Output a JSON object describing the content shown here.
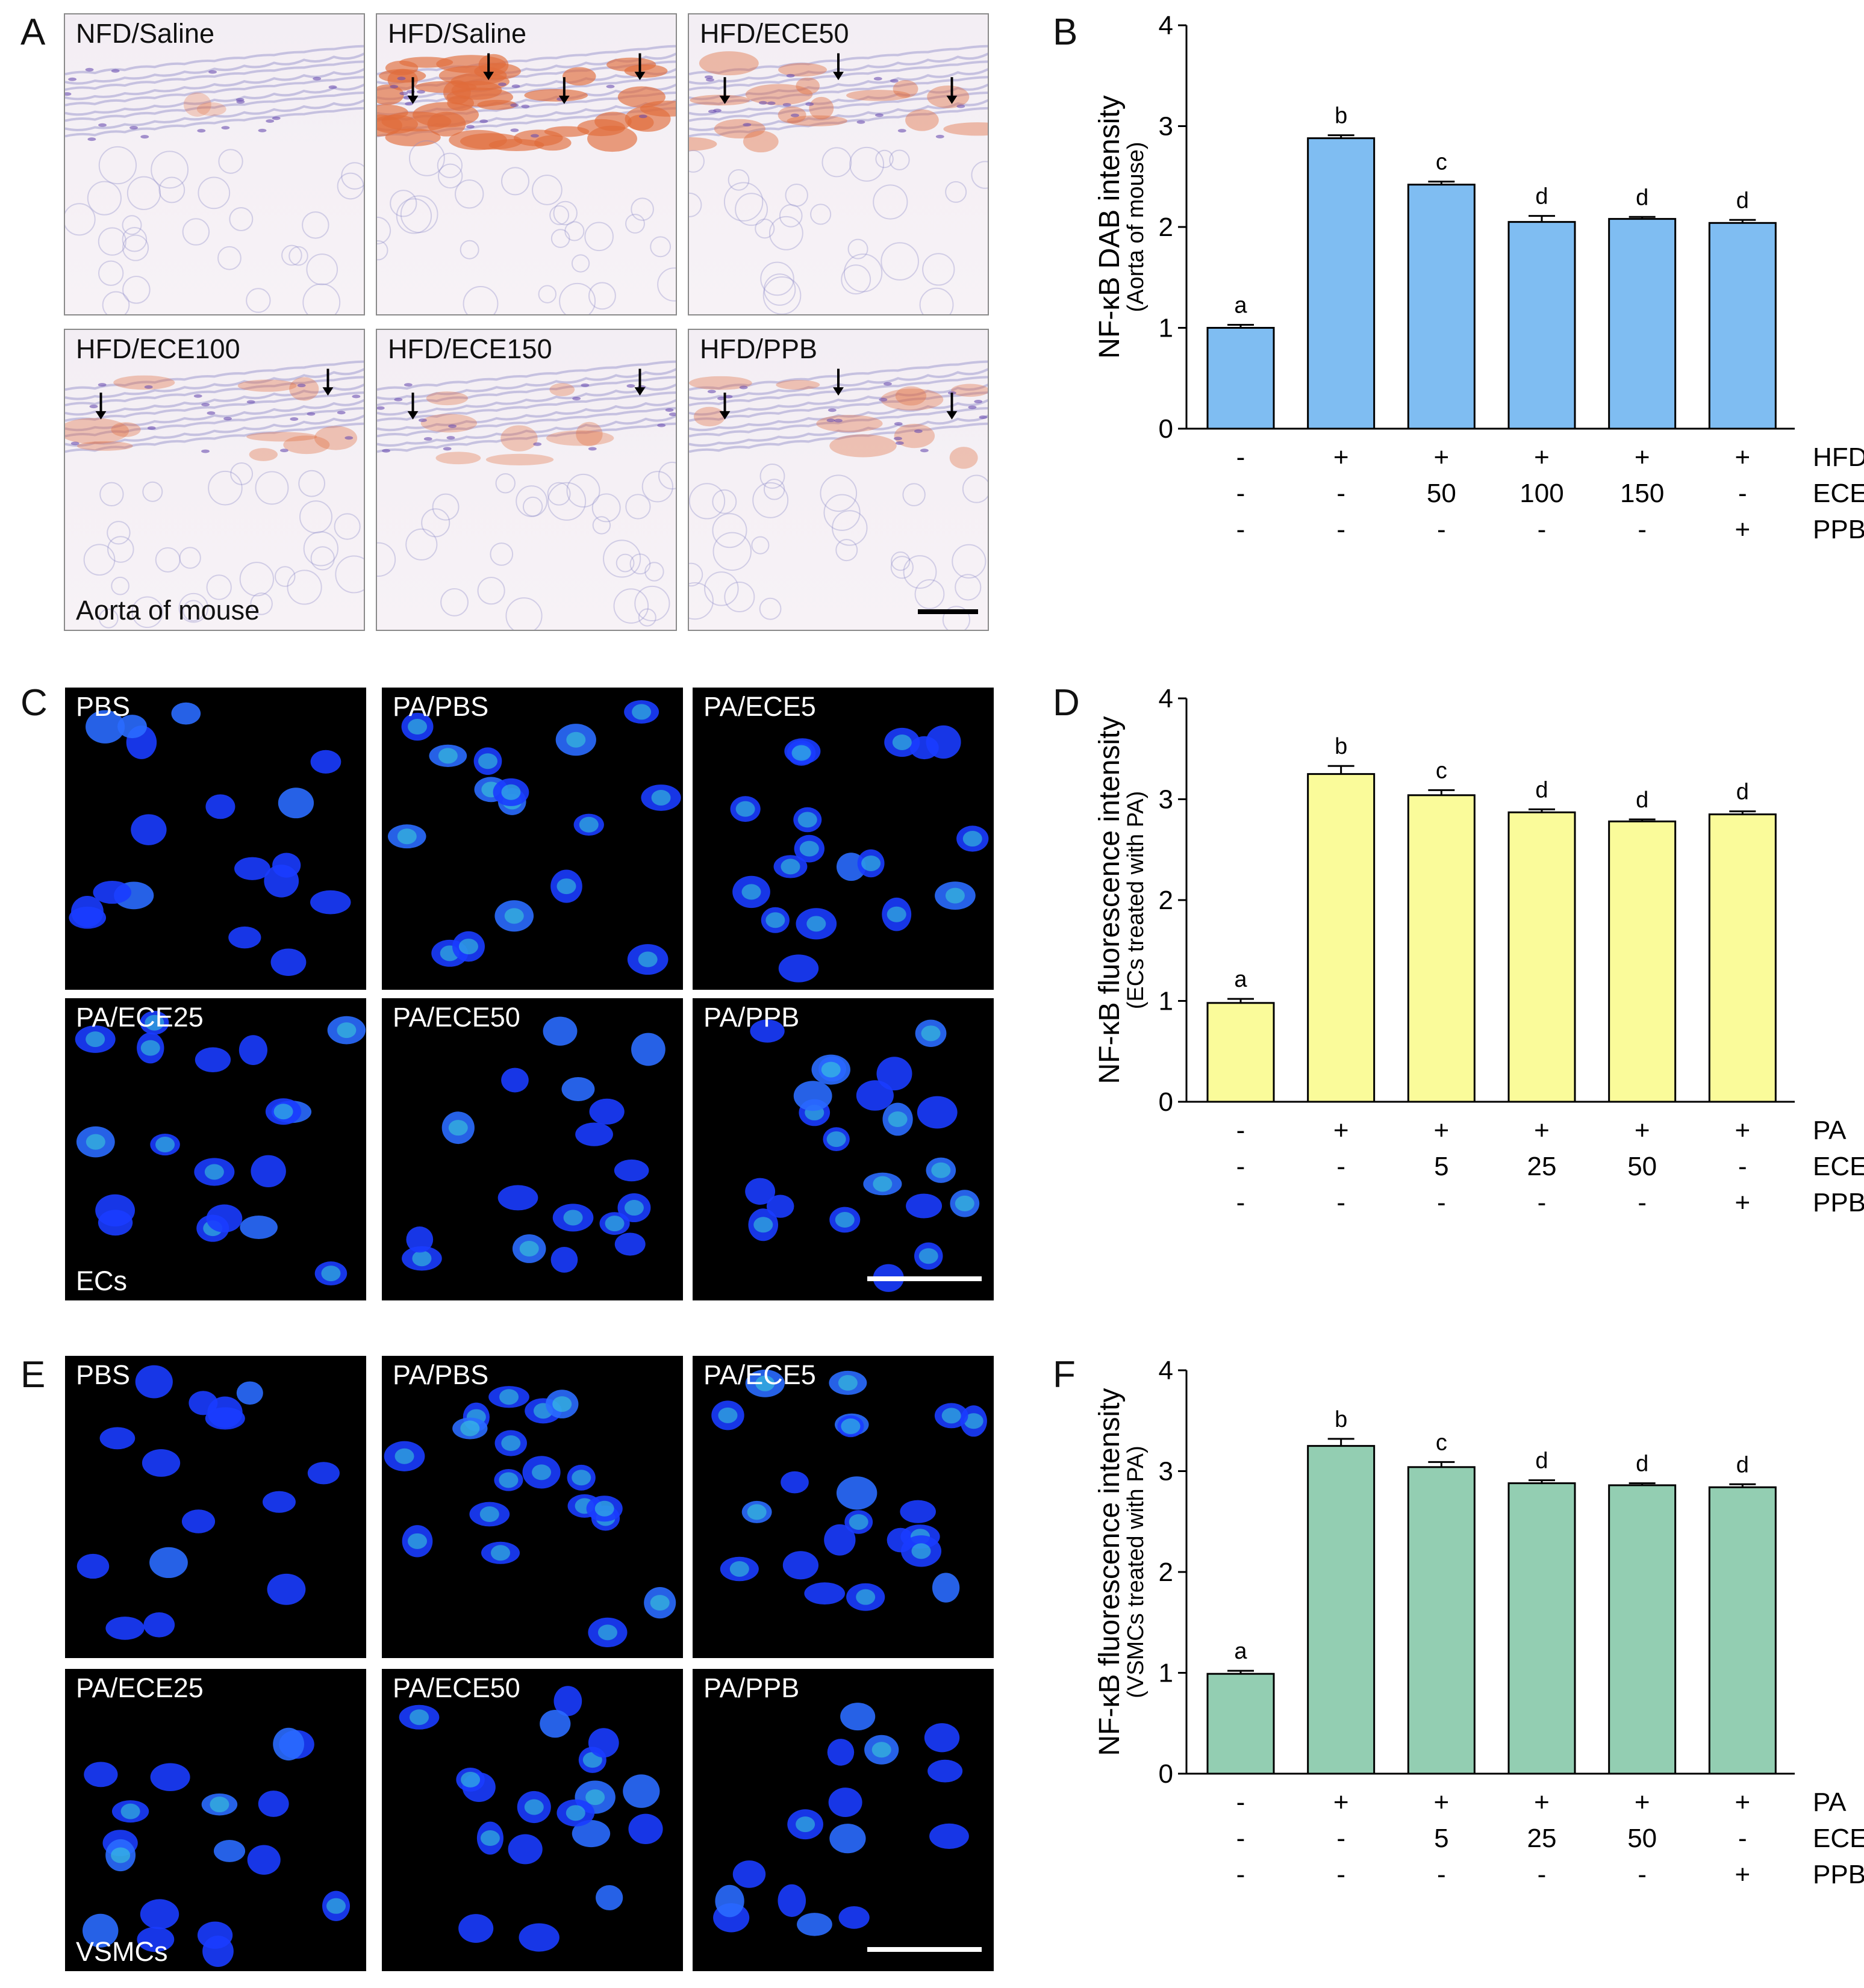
{
  "colors": {
    "blue": "#7fbdf2",
    "yellow": "#fafb9a",
    "green": "#93ceb2",
    "nucleus": "#1a3cff",
    "green_signal": "#37c46a",
    "stain": "#e06b3a",
    "hematoxylin": "#8d89c8"
  },
  "panel_letters": {
    "A": "A",
    "B": "B",
    "C": "C",
    "D": "D",
    "E": "E",
    "F": "F"
  },
  "panel_a": {
    "images": [
      {
        "label": "NFD/Saline",
        "arrows": 0,
        "stain": 0.05
      },
      {
        "label": "HFD/Saline",
        "arrows": 4,
        "stain": 1.0
      },
      {
        "label": "HFD/ECE50",
        "arrows": 3,
        "stain": 0.4
      },
      {
        "label": "HFD/ECE100",
        "arrows": 2,
        "stain": 0.25
      },
      {
        "label": "HFD/ECE150",
        "arrows": 2,
        "stain": 0.2
      },
      {
        "label": "HFD/PPB",
        "arrows": 3,
        "stain": 0.25
      }
    ],
    "note": "Aorta of mouse"
  },
  "panel_c": {
    "images": [
      {
        "label": "PBS",
        "green": 0.0
      },
      {
        "label": "PA/PBS",
        "green": 1.0
      },
      {
        "label": "PA/ECE5",
        "green": 0.6
      },
      {
        "label": "PA/ECE25",
        "green": 0.4
      },
      {
        "label": "PA/ECE50",
        "green": 0.3
      },
      {
        "label": "PA/PPB",
        "green": 0.4
      }
    ],
    "note": "ECs"
  },
  "panel_e": {
    "images": [
      {
        "label": "PBS",
        "green": 0.0
      },
      {
        "label": "PA/PBS",
        "green": 1.0
      },
      {
        "label": "PA/ECE5",
        "green": 0.6
      },
      {
        "label": "PA/ECE25",
        "green": 0.4
      },
      {
        "label": "PA/ECE50",
        "green": 0.3
      },
      {
        "label": "PA/PPB",
        "green": 0.4
      }
    ],
    "note": "VSMCs"
  },
  "chart_data": [
    {
      "type": "bar",
      "panel": "B",
      "ylabel": "NF-κB DAB intensity",
      "ylabel2": "(Aorta of mouse)",
      "ylim": [
        0,
        4
      ],
      "yticks": [
        0,
        1,
        2,
        3,
        4
      ],
      "values": [
        1.0,
        2.88,
        2.42,
        2.05,
        2.08,
        2.04
      ],
      "errors": [
        0.03,
        0.03,
        0.03,
        0.06,
        0.02,
        0.03
      ],
      "letters": [
        "a",
        "b",
        "c",
        "d",
        "d",
        "d"
      ],
      "treatment_rows": [
        {
          "name": "HFD",
          "values": [
            "-",
            "+",
            "+",
            "+",
            "+",
            "+"
          ]
        },
        {
          "name": "ECE",
          "values": [
            "-",
            "-",
            "50",
            "100",
            "150",
            "-"
          ]
        },
        {
          "name": "PPB",
          "values": [
            "-",
            "-",
            "-",
            "-",
            "-",
            "+"
          ]
        }
      ],
      "color": "#7fbdf2"
    },
    {
      "type": "bar",
      "panel": "D",
      "ylabel": "NF-κB fluorescence intensity",
      "ylabel2": "(ECs treated with PA)",
      "ylim": [
        0,
        4
      ],
      "yticks": [
        0,
        1,
        2,
        3,
        4
      ],
      "values": [
        0.98,
        3.25,
        3.04,
        2.87,
        2.78,
        2.85
      ],
      "errors": [
        0.04,
        0.08,
        0.05,
        0.03,
        0.02,
        0.03
      ],
      "letters": [
        "a",
        "b",
        "c",
        "d",
        "d",
        "d"
      ],
      "treatment_rows": [
        {
          "name": "PA",
          "values": [
            "-",
            "+",
            "+",
            "+",
            "+",
            "+"
          ]
        },
        {
          "name": "ECE",
          "values": [
            "-",
            "-",
            "5",
            "25",
            "50",
            "-"
          ]
        },
        {
          "name": "PPB",
          "values": [
            "-",
            "-",
            "-",
            "-",
            "-",
            "+"
          ]
        }
      ],
      "color": "#fafb9a"
    },
    {
      "type": "bar",
      "panel": "F",
      "ylabel": "NF-κB fluorescence intensity",
      "ylabel2": "(VSMCs treated with PA)",
      "ylim": [
        0,
        4
      ],
      "yticks": [
        0,
        1,
        2,
        3,
        4
      ],
      "values": [
        0.99,
        3.25,
        3.04,
        2.88,
        2.86,
        2.84
      ],
      "errors": [
        0.03,
        0.07,
        0.05,
        0.03,
        0.02,
        0.03
      ],
      "letters": [
        "a",
        "b",
        "c",
        "d",
        "d",
        "d"
      ],
      "treatment_rows": [
        {
          "name": "PA",
          "values": [
            "-",
            "+",
            "+",
            "+",
            "+",
            "+"
          ]
        },
        {
          "name": "ECE",
          "values": [
            "-",
            "-",
            "5",
            "25",
            "50",
            "-"
          ]
        },
        {
          "name": "PPB",
          "values": [
            "-",
            "-",
            "-",
            "-",
            "-",
            "+"
          ]
        }
      ],
      "color": "#93ceb2"
    }
  ]
}
